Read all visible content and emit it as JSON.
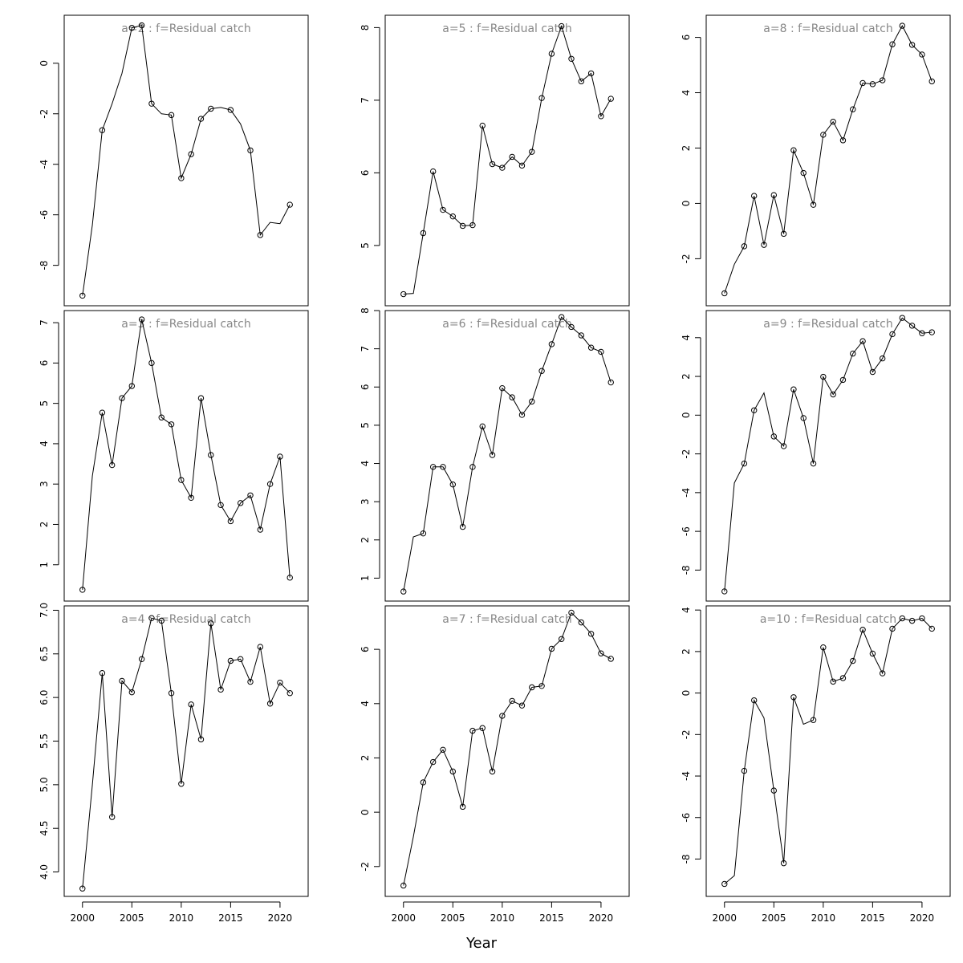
{
  "figure": {
    "xlabel": "Year"
  },
  "chart_data": [
    {
      "type": "line",
      "title": "a=2 : f=Residual catch",
      "x": [
        2000,
        2001,
        2002,
        2003,
        2004,
        2005,
        2006,
        2007,
        2008,
        2009,
        2010,
        2011,
        2012,
        2013,
        2014,
        2015,
        2016,
        2017,
        2018,
        2019,
        2020,
        2021
      ],
      "values": [
        -9.2,
        -6.4,
        -2.65,
        -1.6,
        -0.4,
        1.4,
        1.5,
        -1.6,
        -2.0,
        -2.05,
        -4.55,
        -3.6,
        -2.2,
        -1.8,
        -1.75,
        -1.85,
        -2.4,
        -3.45,
        -6.8,
        -6.3,
        -6.35,
        -5.6
      ],
      "ylim": [
        -9.6,
        1.9
      ],
      "yticks": [
        -8,
        -6,
        -4,
        -2,
        0
      ],
      "ytick_labels": [
        "-8",
        "-6",
        "-4",
        "-2",
        "0"
      ],
      "markers": [
        true,
        false,
        true,
        false,
        false,
        true,
        true,
        true,
        false,
        true,
        true,
        true,
        true,
        true,
        false,
        true,
        false,
        true,
        true,
        false,
        false,
        true
      ]
    },
    {
      "type": "line",
      "title": "a=5 : f=Residual catch",
      "x": [
        2000,
        2001,
        2002,
        2003,
        2004,
        2005,
        2006,
        2007,
        2008,
        2009,
        2010,
        2011,
        2012,
        2013,
        2014,
        2015,
        2016,
        2017,
        2018,
        2019,
        2020,
        2021
      ],
      "values": [
        4.33,
        4.34,
        5.17,
        6.02,
        5.49,
        5.4,
        5.27,
        5.28,
        6.65,
        6.12,
        6.07,
        6.22,
        6.1,
        6.29,
        7.03,
        7.64,
        8.02,
        7.57,
        7.26,
        7.37,
        6.78,
        7.02
      ],
      "ylim": [
        4.17,
        8.17
      ],
      "yticks": [
        5,
        6,
        7,
        8
      ],
      "ytick_labels": [
        "5",
        "6",
        "7",
        "8"
      ],
      "markers": [
        true,
        false,
        true,
        true,
        true,
        true,
        true,
        true,
        true,
        true,
        true,
        true,
        true,
        true,
        true,
        true,
        true,
        true,
        true,
        true,
        true,
        true
      ]
    },
    {
      "type": "line",
      "title": "a=8 : f=Residual catch",
      "x": [
        2000,
        2001,
        2002,
        2003,
        2004,
        2005,
        2006,
        2007,
        2008,
        2009,
        2010,
        2011,
        2012,
        2013,
        2014,
        2015,
        2016,
        2017,
        2018,
        2019,
        2020,
        2021
      ],
      "values": [
        -3.25,
        -2.2,
        -1.55,
        0.27,
        -1.5,
        0.3,
        -1.1,
        1.92,
        1.1,
        -0.05,
        2.48,
        2.95,
        2.28,
        3.4,
        4.35,
        4.31,
        4.45,
        5.75,
        6.42,
        5.73,
        5.38,
        4.41
      ],
      "ylim": [
        -3.7,
        6.8
      ],
      "yticks": [
        -2,
        0,
        2,
        4,
        6
      ],
      "ytick_labels": [
        "-2",
        "0",
        "2",
        "4",
        "6"
      ],
      "markers": [
        true,
        false,
        true,
        true,
        true,
        true,
        true,
        true,
        true,
        true,
        true,
        true,
        true,
        true,
        true,
        true,
        true,
        true,
        true,
        true,
        true,
        true
      ]
    },
    {
      "type": "line",
      "title": "a=3 : f=Residual catch",
      "x": [
        2000,
        2001,
        2002,
        2003,
        2004,
        2005,
        2006,
        2007,
        2008,
        2009,
        2010,
        2011,
        2012,
        2013,
        2014,
        2015,
        2016,
        2017,
        2018,
        2019,
        2020,
        2021
      ],
      "values": [
        0.38,
        3.2,
        4.77,
        3.47,
        5.13,
        5.43,
        7.08,
        6.0,
        4.65,
        4.48,
        3.1,
        2.66,
        5.13,
        3.72,
        2.48,
        2.08,
        2.53,
        2.72,
        1.87,
        3.0,
        3.68,
        0.68
      ],
      "ylim": [
        0.1,
        7.3
      ],
      "yticks": [
        1,
        2,
        3,
        4,
        5,
        6,
        7
      ],
      "ytick_labels": [
        "1",
        "2",
        "3",
        "4",
        "5",
        "6",
        "7"
      ],
      "markers": [
        true,
        false,
        true,
        true,
        true,
        true,
        true,
        true,
        true,
        true,
        true,
        true,
        true,
        true,
        true,
        true,
        true,
        true,
        true,
        true,
        true,
        true
      ]
    },
    {
      "type": "line",
      "title": "a=6 : f=Residual catch",
      "x": [
        2000,
        2001,
        2002,
        2003,
        2004,
        2005,
        2006,
        2007,
        2008,
        2009,
        2010,
        2011,
        2012,
        2013,
        2014,
        2015,
        2016,
        2017,
        2018,
        2019,
        2020,
        2021
      ],
      "values": [
        0.65,
        2.08,
        2.17,
        3.91,
        3.91,
        3.45,
        2.34,
        3.91,
        4.97,
        4.22,
        5.97,
        5.73,
        5.27,
        5.62,
        6.42,
        7.12,
        7.83,
        7.57,
        7.35,
        7.03,
        6.92,
        6.12
      ],
      "ylim": [
        0.4,
        8.0
      ],
      "yticks": [
        1,
        2,
        3,
        4,
        5,
        6,
        7,
        8
      ],
      "ytick_labels": [
        "1",
        "2",
        "3",
        "4",
        "5",
        "6",
        "7",
        "8"
      ],
      "markers": [
        true,
        false,
        true,
        true,
        true,
        true,
        true,
        true,
        true,
        true,
        true,
        true,
        true,
        true,
        true,
        true,
        true,
        true,
        true,
        true,
        true,
        true
      ]
    },
    {
      "type": "line",
      "title": "a=9 : f=Residual catch",
      "x": [
        2000,
        2001,
        2002,
        2003,
        2004,
        2005,
        2006,
        2007,
        2008,
        2009,
        2010,
        2011,
        2012,
        2013,
        2014,
        2015,
        2016,
        2017,
        2018,
        2019,
        2020,
        2021
      ],
      "values": [
        -9.1,
        -3.5,
        -2.5,
        0.25,
        1.15,
        -1.1,
        -1.6,
        1.33,
        -0.15,
        -2.5,
        1.98,
        1.07,
        1.82,
        3.18,
        3.82,
        2.23,
        2.93,
        4.18,
        5.02,
        4.62,
        4.23,
        4.28
      ],
      "ylim": [
        -9.6,
        5.4
      ],
      "yticks": [
        -8,
        -6,
        -4,
        -2,
        0,
        2,
        4
      ],
      "ytick_labels": [
        "-8",
        "-6",
        "-4",
        "-2",
        "0",
        "2",
        "4"
      ],
      "markers": [
        true,
        false,
        true,
        true,
        false,
        true,
        true,
        true,
        true,
        true,
        true,
        true,
        true,
        true,
        true,
        true,
        true,
        true,
        true,
        true,
        true,
        true
      ]
    },
    {
      "type": "line",
      "title": "a=4 : f=Residual catch",
      "x": [
        2000,
        2001,
        2002,
        2003,
        2004,
        2005,
        2006,
        2007,
        2008,
        2009,
        2010,
        2011,
        2012,
        2013,
        2014,
        2015,
        2016,
        2017,
        2018,
        2019,
        2020,
        2021
      ],
      "values": [
        3.81,
        5.0,
        6.28,
        4.63,
        6.19,
        6.06,
        6.44,
        6.91,
        6.88,
        6.05,
        5.01,
        5.92,
        5.52,
        6.85,
        6.09,
        6.42,
        6.44,
        6.18,
        6.58,
        5.93,
        6.17,
        6.05
      ],
      "ylim": [
        3.72,
        7.05
      ],
      "yticks": [
        4.0,
        4.5,
        5.0,
        5.5,
        6.0,
        6.5,
        7.0
      ],
      "ytick_labels": [
        "4.0",
        "4.5",
        "5.0",
        "5.5",
        "6.0",
        "6.5",
        "7.0"
      ],
      "markers": [
        true,
        false,
        true,
        true,
        true,
        true,
        true,
        true,
        true,
        true,
        true,
        true,
        true,
        true,
        true,
        true,
        true,
        true,
        true,
        true,
        true,
        true
      ]
    },
    {
      "type": "line",
      "title": "a=7 : f=Residual catch",
      "x": [
        2000,
        2001,
        2002,
        2003,
        2004,
        2005,
        2006,
        2007,
        2008,
        2009,
        2010,
        2011,
        2012,
        2013,
        2014,
        2015,
        2016,
        2017,
        2018,
        2019,
        2020,
        2021
      ],
      "values": [
        -2.7,
        -0.9,
        1.1,
        1.85,
        2.3,
        1.5,
        0.2,
        3.0,
        3.1,
        1.5,
        3.55,
        4.1,
        3.93,
        4.6,
        4.65,
        6.02,
        6.38,
        7.35,
        6.99,
        6.57,
        5.85,
        5.65
      ],
      "ylim": [
        -3.1,
        7.6
      ],
      "yticks": [
        -2,
        0,
        2,
        4,
        6
      ],
      "ytick_labels": [
        "-2",
        "0",
        "2",
        "4",
        "6"
      ],
      "markers": [
        true,
        false,
        true,
        true,
        true,
        true,
        true,
        true,
        true,
        true,
        true,
        true,
        true,
        true,
        true,
        true,
        true,
        true,
        true,
        true,
        true,
        true
      ]
    },
    {
      "type": "line",
      "title": "a=10 : f=Residual catch",
      "x": [
        2000,
        2001,
        2002,
        2003,
        2004,
        2005,
        2006,
        2007,
        2008,
        2009,
        2010,
        2011,
        2012,
        2013,
        2014,
        2015,
        2016,
        2017,
        2018,
        2019,
        2020,
        2021
      ],
      "values": [
        -9.2,
        -8.8,
        -3.75,
        -0.35,
        -1.2,
        -4.7,
        -8.2,
        -0.2,
        -1.5,
        -1.3,
        2.2,
        0.55,
        0.72,
        1.55,
        3.05,
        1.9,
        0.95,
        3.1,
        3.6,
        3.48,
        3.6,
        3.1
      ],
      "ylim": [
        -9.8,
        4.2
      ],
      "yticks": [
        -8,
        -6,
        -4,
        -2,
        0,
        2,
        4
      ],
      "ytick_labels": [
        "-8",
        "-6",
        "-4",
        "-2",
        "0",
        "2",
        "4"
      ],
      "markers": [
        true,
        false,
        true,
        true,
        false,
        true,
        true,
        true,
        false,
        true,
        true,
        true,
        true,
        true,
        true,
        true,
        true,
        true,
        true,
        true,
        true,
        true
      ]
    }
  ]
}
